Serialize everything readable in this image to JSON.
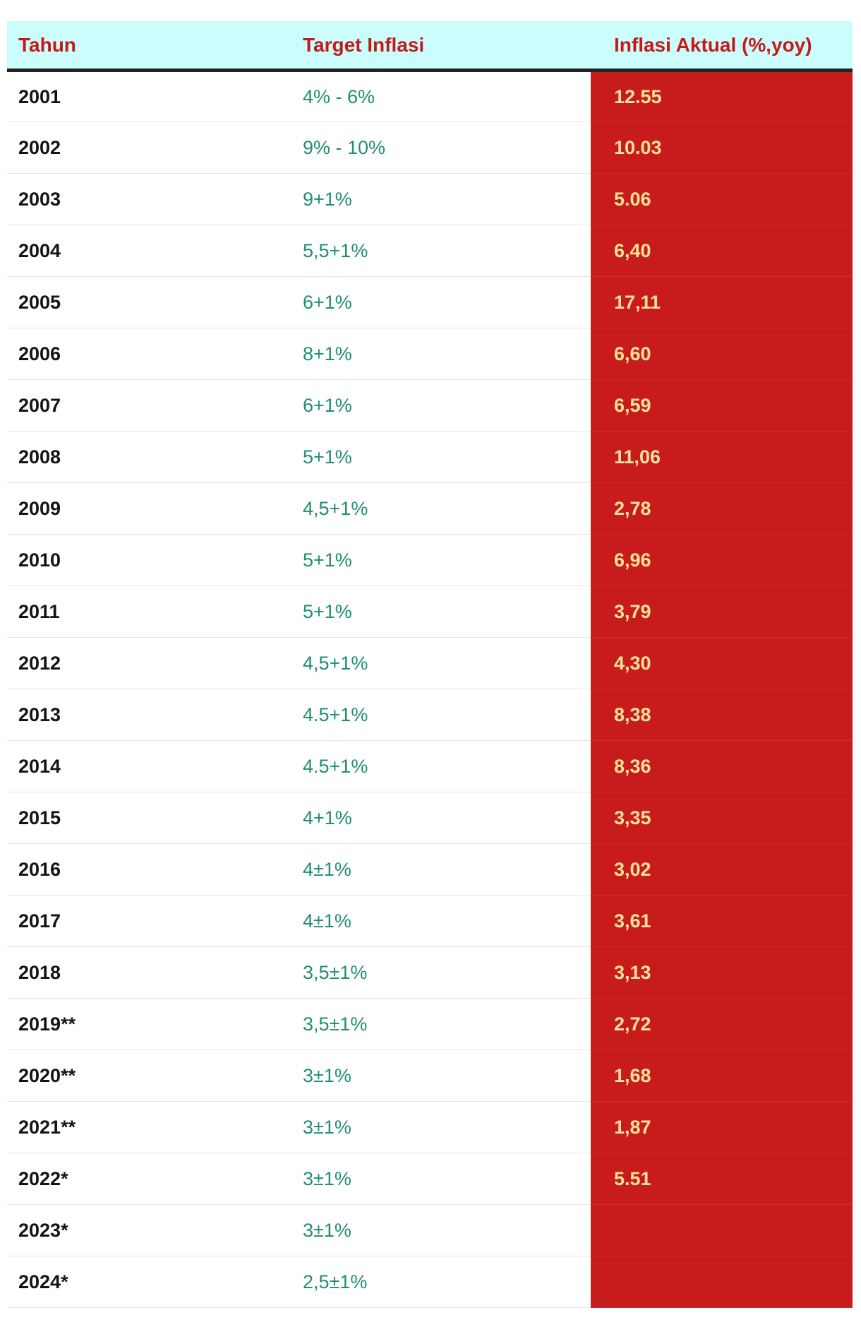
{
  "colors": {
    "header_bg": "#ccfdfd",
    "header_text": "#c41a1a",
    "year_text": "#141414",
    "target_text": "#1f8f6f",
    "actual_bg": "#c81b1b",
    "actual_text": "#fae29a"
  },
  "chart_data": {
    "type": "table",
    "columns": [
      "Tahun",
      "Target Inflasi",
      "Inflasi Aktual (%,yoy)"
    ],
    "rows": [
      {
        "year": "2001",
        "target": "4% - 6%",
        "actual": "12.55"
      },
      {
        "year": "2002",
        "target": "9% - 10%",
        "actual": "10.03"
      },
      {
        "year": "2003",
        "target": "9+1%",
        "actual": "5.06"
      },
      {
        "year": "2004",
        "target": "5,5+1%",
        "actual": "6,40"
      },
      {
        "year": "2005",
        "target": "6+1%",
        "actual": "17,11"
      },
      {
        "year": "2006",
        "target": "8+1%",
        "actual": "6,60"
      },
      {
        "year": "2007",
        "target": "6+1%",
        "actual": "6,59"
      },
      {
        "year": "2008",
        "target": "5+1%",
        "actual": "11,06"
      },
      {
        "year": "2009",
        "target": "4,5+1%",
        "actual": "2,78"
      },
      {
        "year": "2010",
        "target": "5+1%",
        "actual": "6,96"
      },
      {
        "year": "2011",
        "target": "5+1%",
        "actual": "3,79"
      },
      {
        "year": "2012",
        "target": "4,5+1%",
        "actual": "4,30"
      },
      {
        "year": "2013",
        "target": "4.5+1%",
        "actual": "8,38"
      },
      {
        "year": "2014",
        "target": "4.5+1%",
        "actual": "8,36"
      },
      {
        "year": "2015",
        "target": "4+1%",
        "actual": "3,35"
      },
      {
        "year": "2016",
        "target": "4±1%",
        "actual": "3,02"
      },
      {
        "year": "2017",
        "target": "4±1%",
        "actual": "3,61"
      },
      {
        "year": "2018",
        "target": "3,5±1%",
        "actual": "3,13"
      },
      {
        "year": "2019**",
        "target": "3,5±1%",
        "actual": "2,72"
      },
      {
        "year": "2020**",
        "target": "3±1%",
        "actual": "1,68"
      },
      {
        "year": "2021**",
        "target": "3±1%",
        "actual": "1,87"
      },
      {
        "year": "2022*",
        "target": "3±1%",
        "actual": "5.51"
      },
      {
        "year": "2023*",
        "target": "3±1%",
        "actual": ""
      },
      {
        "year": "2024*",
        "target": "2,5±1%",
        "actual": ""
      }
    ]
  }
}
